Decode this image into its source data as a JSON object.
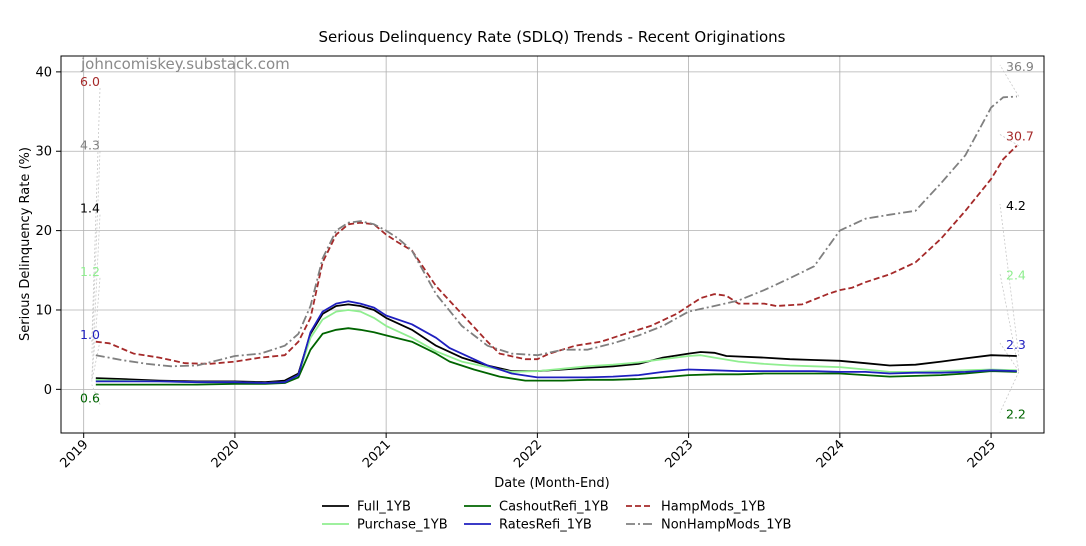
{
  "watermark": "johncomiskey.substack.com",
  "chart_data": {
    "type": "line",
    "title": "Serious Delinquency Rate (SDLQ) Trends - Recent Originations",
    "xlabel": "Date (Month-End)",
    "ylabel": "Serious Delinquency Rate (%)",
    "xlim": [
      2018.85,
      2025.35
    ],
    "ylim": [
      -5.5,
      42
    ],
    "xticks": [
      2019,
      2020,
      2021,
      2022,
      2023,
      2024,
      2025
    ],
    "xtick_labels": [
      "2019",
      "2020",
      "2021",
      "2022",
      "2023",
      "2024",
      "2025"
    ],
    "yticks": [
      0,
      10,
      20,
      30,
      40
    ],
    "ytick_labels": [
      "0",
      "10",
      "20",
      "30",
      "40"
    ],
    "grid": true,
    "legend_position": "bottom-center",
    "series": [
      {
        "name": "Full_1YB",
        "color": "#000000",
        "dash": "solid",
        "start_label": "1.4",
        "end_label": "4.2",
        "points": [
          [
            2019.08,
            1.4
          ],
          [
            2019.25,
            1.3
          ],
          [
            2019.5,
            1.1
          ],
          [
            2019.75,
            1.0
          ],
          [
            2020.0,
            1.0
          ],
          [
            2020.2,
            0.9
          ],
          [
            2020.33,
            1.1
          ],
          [
            2020.42,
            2.0
          ],
          [
            2020.5,
            7.0
          ],
          [
            2020.58,
            9.5
          ],
          [
            2020.67,
            10.5
          ],
          [
            2020.75,
            10.7
          ],
          [
            2020.83,
            10.5
          ],
          [
            2020.92,
            10.0
          ],
          [
            2021.0,
            9.0
          ],
          [
            2021.17,
            7.5
          ],
          [
            2021.33,
            5.5
          ],
          [
            2021.5,
            4.0
          ],
          [
            2021.67,
            3.0
          ],
          [
            2021.83,
            2.3
          ],
          [
            2022.0,
            2.3
          ],
          [
            2022.17,
            2.5
          ],
          [
            2022.33,
            2.7
          ],
          [
            2022.5,
            2.9
          ],
          [
            2022.67,
            3.2
          ],
          [
            2022.83,
            4.0
          ],
          [
            2023.0,
            4.5
          ],
          [
            2023.08,
            4.7
          ],
          [
            2023.17,
            4.6
          ],
          [
            2023.25,
            4.2
          ],
          [
            2023.5,
            4.0
          ],
          [
            2023.67,
            3.8
          ],
          [
            2023.83,
            3.7
          ],
          [
            2024.0,
            3.6
          ],
          [
            2024.17,
            3.3
          ],
          [
            2024.33,
            3.0
          ],
          [
            2024.5,
            3.1
          ],
          [
            2024.67,
            3.5
          ],
          [
            2024.83,
            3.9
          ],
          [
            2025.0,
            4.3
          ],
          [
            2025.17,
            4.2
          ]
        ]
      },
      {
        "name": "Purchase_1YB",
        "color": "#90ee90",
        "dash": "solid",
        "start_label": "1.2",
        "end_label": "2.4",
        "points": [
          [
            2019.08,
            1.2
          ],
          [
            2019.25,
            1.1
          ],
          [
            2019.5,
            1.0
          ],
          [
            2019.75,
            0.9
          ],
          [
            2020.0,
            0.9
          ],
          [
            2020.2,
            0.8
          ],
          [
            2020.33,
            0.9
          ],
          [
            2020.42,
            1.8
          ],
          [
            2020.5,
            6.5
          ],
          [
            2020.58,
            8.8
          ],
          [
            2020.67,
            9.8
          ],
          [
            2020.75,
            10.0
          ],
          [
            2020.83,
            9.8
          ],
          [
            2020.92,
            9.0
          ],
          [
            2021.0,
            8.0
          ],
          [
            2021.17,
            6.5
          ],
          [
            2021.33,
            4.8
          ],
          [
            2021.5,
            3.5
          ],
          [
            2021.67,
            2.8
          ],
          [
            2021.83,
            2.2
          ],
          [
            2022.0,
            2.3
          ],
          [
            2022.17,
            2.6
          ],
          [
            2022.33,
            2.9
          ],
          [
            2022.5,
            3.1
          ],
          [
            2022.67,
            3.4
          ],
          [
            2022.83,
            3.8
          ],
          [
            2023.0,
            4.2
          ],
          [
            2023.08,
            4.3
          ],
          [
            2023.17,
            4.0
          ],
          [
            2023.33,
            3.5
          ],
          [
            2023.5,
            3.2
          ],
          [
            2023.67,
            3.0
          ],
          [
            2023.83,
            2.9
          ],
          [
            2024.0,
            2.8
          ],
          [
            2024.17,
            2.5
          ],
          [
            2024.33,
            2.2
          ],
          [
            2024.5,
            2.2
          ],
          [
            2024.67,
            2.3
          ],
          [
            2024.83,
            2.4
          ],
          [
            2025.0,
            2.5
          ],
          [
            2025.17,
            2.4
          ]
        ]
      },
      {
        "name": "CashoutRefi_1YB",
        "color": "#006400",
        "dash": "solid",
        "start_label": "0.6",
        "end_label": "2.2",
        "points": [
          [
            2019.08,
            0.6
          ],
          [
            2019.25,
            0.6
          ],
          [
            2019.5,
            0.6
          ],
          [
            2019.75,
            0.6
          ],
          [
            2020.0,
            0.7
          ],
          [
            2020.2,
            0.7
          ],
          [
            2020.33,
            0.8
          ],
          [
            2020.42,
            1.5
          ],
          [
            2020.5,
            5.0
          ],
          [
            2020.58,
            7.0
          ],
          [
            2020.67,
            7.5
          ],
          [
            2020.75,
            7.7
          ],
          [
            2020.83,
            7.5
          ],
          [
            2020.92,
            7.2
          ],
          [
            2021.0,
            6.8
          ],
          [
            2021.17,
            6.0
          ],
          [
            2021.33,
            4.5
          ],
          [
            2021.42,
            3.5
          ],
          [
            2021.58,
            2.5
          ],
          [
            2021.75,
            1.6
          ],
          [
            2021.92,
            1.1
          ],
          [
            2022.0,
            1.1
          ],
          [
            2022.17,
            1.1
          ],
          [
            2022.33,
            1.2
          ],
          [
            2022.5,
            1.2
          ],
          [
            2022.67,
            1.3
          ],
          [
            2022.83,
            1.5
          ],
          [
            2023.0,
            1.8
          ],
          [
            2023.17,
            1.9
          ],
          [
            2023.33,
            1.9
          ],
          [
            2023.5,
            2.0
          ],
          [
            2023.67,
            2.0
          ],
          [
            2023.83,
            2.0
          ],
          [
            2024.0,
            2.0
          ],
          [
            2024.17,
            1.8
          ],
          [
            2024.33,
            1.6
          ],
          [
            2024.5,
            1.7
          ],
          [
            2024.67,
            1.8
          ],
          [
            2024.83,
            2.0
          ],
          [
            2025.0,
            2.3
          ],
          [
            2025.17,
            2.2
          ]
        ]
      },
      {
        "name": "RatesRefi_1YB",
        "color": "#1f1fbf",
        "dash": "solid",
        "start_label": "1.0",
        "end_label": "2.3",
        "points": [
          [
            2019.08,
            1.0
          ],
          [
            2019.25,
            1.0
          ],
          [
            2019.5,
            1.0
          ],
          [
            2019.75,
            0.9
          ],
          [
            2020.0,
            0.9
          ],
          [
            2020.2,
            0.8
          ],
          [
            2020.33,
            0.9
          ],
          [
            2020.42,
            1.8
          ],
          [
            2020.5,
            7.2
          ],
          [
            2020.58,
            9.8
          ],
          [
            2020.67,
            10.8
          ],
          [
            2020.75,
            11.1
          ],
          [
            2020.83,
            10.8
          ],
          [
            2020.92,
            10.3
          ],
          [
            2021.0,
            9.3
          ],
          [
            2021.17,
            8.2
          ],
          [
            2021.33,
            6.5
          ],
          [
            2021.42,
            5.2
          ],
          [
            2021.58,
            3.8
          ],
          [
            2021.67,
            3.0
          ],
          [
            2021.83,
            2.0
          ],
          [
            2022.0,
            1.5
          ],
          [
            2022.17,
            1.5
          ],
          [
            2022.33,
            1.5
          ],
          [
            2022.5,
            1.6
          ],
          [
            2022.67,
            1.8
          ],
          [
            2022.83,
            2.2
          ],
          [
            2023.0,
            2.5
          ],
          [
            2023.17,
            2.4
          ],
          [
            2023.33,
            2.3
          ],
          [
            2023.5,
            2.3
          ],
          [
            2023.67,
            2.3
          ],
          [
            2023.83,
            2.3
          ],
          [
            2024.0,
            2.2
          ],
          [
            2024.17,
            2.2
          ],
          [
            2024.33,
            2.0
          ],
          [
            2024.5,
            2.1
          ],
          [
            2024.67,
            2.1
          ],
          [
            2024.83,
            2.2
          ],
          [
            2025.0,
            2.4
          ],
          [
            2025.17,
            2.3
          ]
        ]
      },
      {
        "name": "HampMods_1YB",
        "color": "#a52a2a",
        "dash": "dashed",
        "start_label": "6.0",
        "end_label": "30.7",
        "points": [
          [
            2019.08,
            6.0
          ],
          [
            2019.17,
            5.8
          ],
          [
            2019.33,
            4.5
          ],
          [
            2019.5,
            4.0
          ],
          [
            2019.67,
            3.3
          ],
          [
            2019.83,
            3.2
          ],
          [
            2020.0,
            3.5
          ],
          [
            2020.17,
            4.0
          ],
          [
            2020.33,
            4.3
          ],
          [
            2020.42,
            6.0
          ],
          [
            2020.5,
            9.0
          ],
          [
            2020.58,
            16.0
          ],
          [
            2020.67,
            19.5
          ],
          [
            2020.75,
            20.8
          ],
          [
            2020.83,
            21.0
          ],
          [
            2020.92,
            20.8
          ],
          [
            2021.0,
            19.5
          ],
          [
            2021.08,
            18.5
          ],
          [
            2021.17,
            17.5
          ],
          [
            2021.33,
            13.0
          ],
          [
            2021.5,
            9.5
          ],
          [
            2021.67,
            6.0
          ],
          [
            2021.75,
            4.5
          ],
          [
            2021.92,
            3.8
          ],
          [
            2022.0,
            3.8
          ],
          [
            2022.08,
            4.5
          ],
          [
            2022.25,
            5.5
          ],
          [
            2022.42,
            6.0
          ],
          [
            2022.58,
            7.0
          ],
          [
            2022.75,
            8.0
          ],
          [
            2022.92,
            9.5
          ],
          [
            2023.0,
            10.5
          ],
          [
            2023.08,
            11.5
          ],
          [
            2023.17,
            12.0
          ],
          [
            2023.25,
            11.8
          ],
          [
            2023.33,
            10.8
          ],
          [
            2023.5,
            10.8
          ],
          [
            2023.58,
            10.5
          ],
          [
            2023.75,
            10.7
          ],
          [
            2023.92,
            12.0
          ],
          [
            2024.0,
            12.5
          ],
          [
            2024.08,
            12.8
          ],
          [
            2024.17,
            13.5
          ],
          [
            2024.33,
            14.5
          ],
          [
            2024.5,
            16.0
          ],
          [
            2024.67,
            19.0
          ],
          [
            2024.83,
            22.5
          ],
          [
            2025.0,
            26.5
          ],
          [
            2025.08,
            29.0
          ],
          [
            2025.17,
            30.7
          ]
        ]
      },
      {
        "name": "NonHampMods_1YB",
        "color": "#808080",
        "dash": "dashdot",
        "start_label": "4.3",
        "end_label": "36.9",
        "points": [
          [
            2019.08,
            4.3
          ],
          [
            2019.25,
            3.7
          ],
          [
            2019.42,
            3.2
          ],
          [
            2019.58,
            2.9
          ],
          [
            2019.75,
            3.0
          ],
          [
            2020.0,
            4.2
          ],
          [
            2020.17,
            4.5
          ],
          [
            2020.33,
            5.5
          ],
          [
            2020.42,
            7.0
          ],
          [
            2020.5,
            10.5
          ],
          [
            2020.58,
            16.5
          ],
          [
            2020.67,
            20.0
          ],
          [
            2020.75,
            21.0
          ],
          [
            2020.83,
            21.2
          ],
          [
            2020.92,
            20.8
          ],
          [
            2021.0,
            20.0
          ],
          [
            2021.08,
            19.0
          ],
          [
            2021.17,
            17.5
          ],
          [
            2021.33,
            12.0
          ],
          [
            2021.5,
            8.0
          ],
          [
            2021.67,
            5.5
          ],
          [
            2021.83,
            4.5
          ],
          [
            2022.0,
            4.3
          ],
          [
            2022.17,
            5.0
          ],
          [
            2022.33,
            5.0
          ],
          [
            2022.5,
            5.8
          ],
          [
            2022.67,
            6.8
          ],
          [
            2022.83,
            8.0
          ],
          [
            2023.0,
            9.8
          ],
          [
            2023.17,
            10.5
          ],
          [
            2023.33,
            11.2
          ],
          [
            2023.5,
            12.5
          ],
          [
            2023.67,
            14.0
          ],
          [
            2023.83,
            15.5
          ],
          [
            2024.0,
            20.0
          ],
          [
            2024.17,
            21.5
          ],
          [
            2024.33,
            22.0
          ],
          [
            2024.5,
            22.5
          ],
          [
            2024.67,
            26.0
          ],
          [
            2024.83,
            29.5
          ],
          [
            2025.0,
            35.5
          ],
          [
            2025.08,
            36.8
          ],
          [
            2025.17,
            36.9
          ]
        ]
      }
    ]
  }
}
